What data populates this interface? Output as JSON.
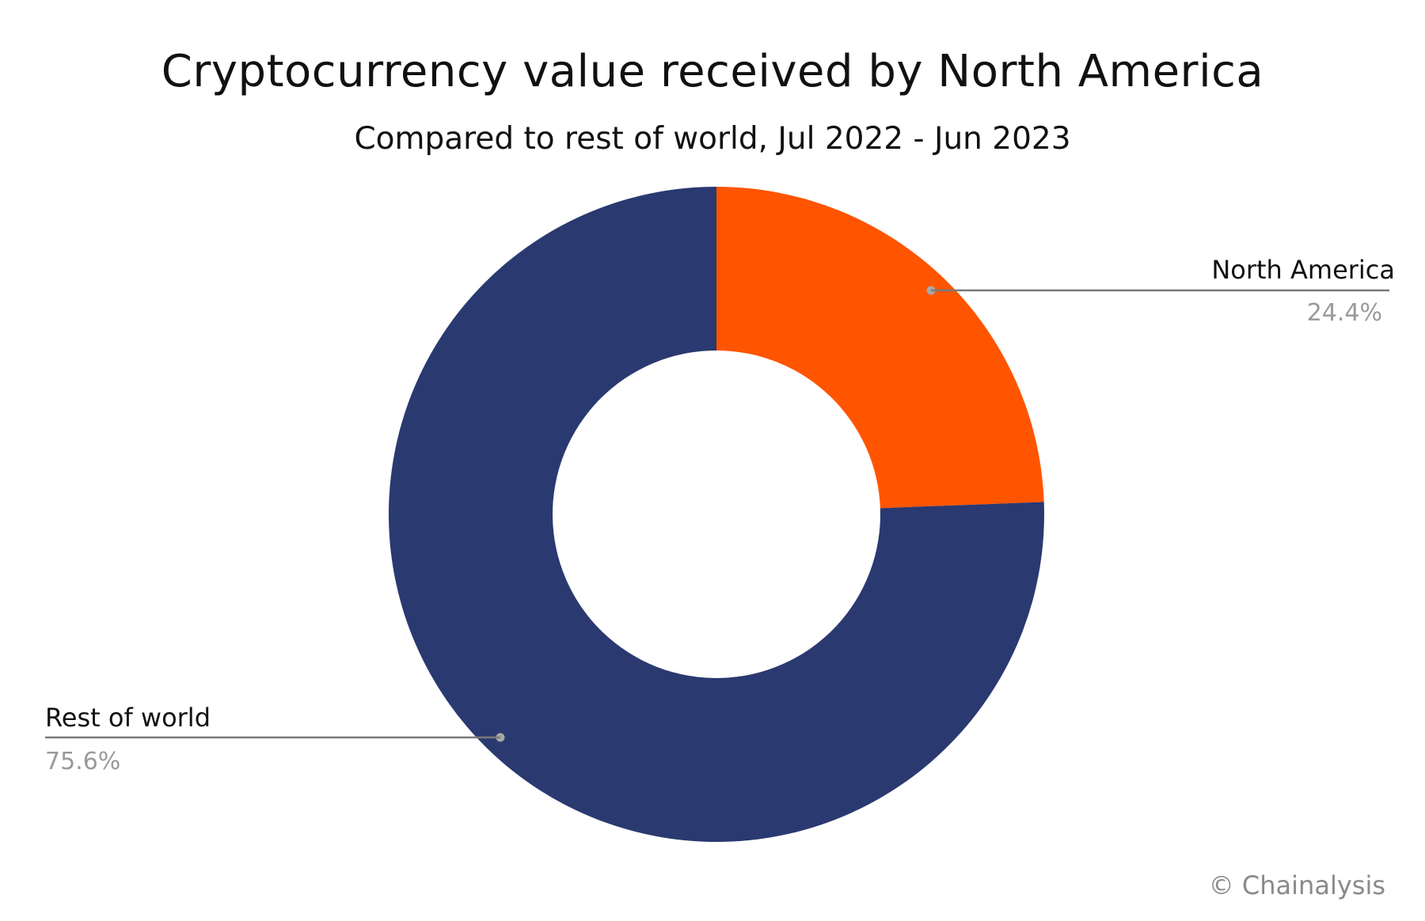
{
  "chart_data": {
    "type": "pie",
    "title": "Cryptocurrency value received by North America",
    "subtitle": "Compared to rest of world, Jul 2022 - Jun 2023",
    "donut": true,
    "slices": [
      {
        "label": "North America",
        "value": 24.4,
        "value_label": "24.4%",
        "color": "#ff5500"
      },
      {
        "label": "Rest of world",
        "value": 75.6,
        "value_label": "75.6%",
        "color": "#2a3970"
      }
    ],
    "legend": "callout-labels"
  },
  "source": "© Chainalysis",
  "colors": {
    "leader_line": "#7a7a7a",
    "value_text": "#9a9a9a"
  }
}
